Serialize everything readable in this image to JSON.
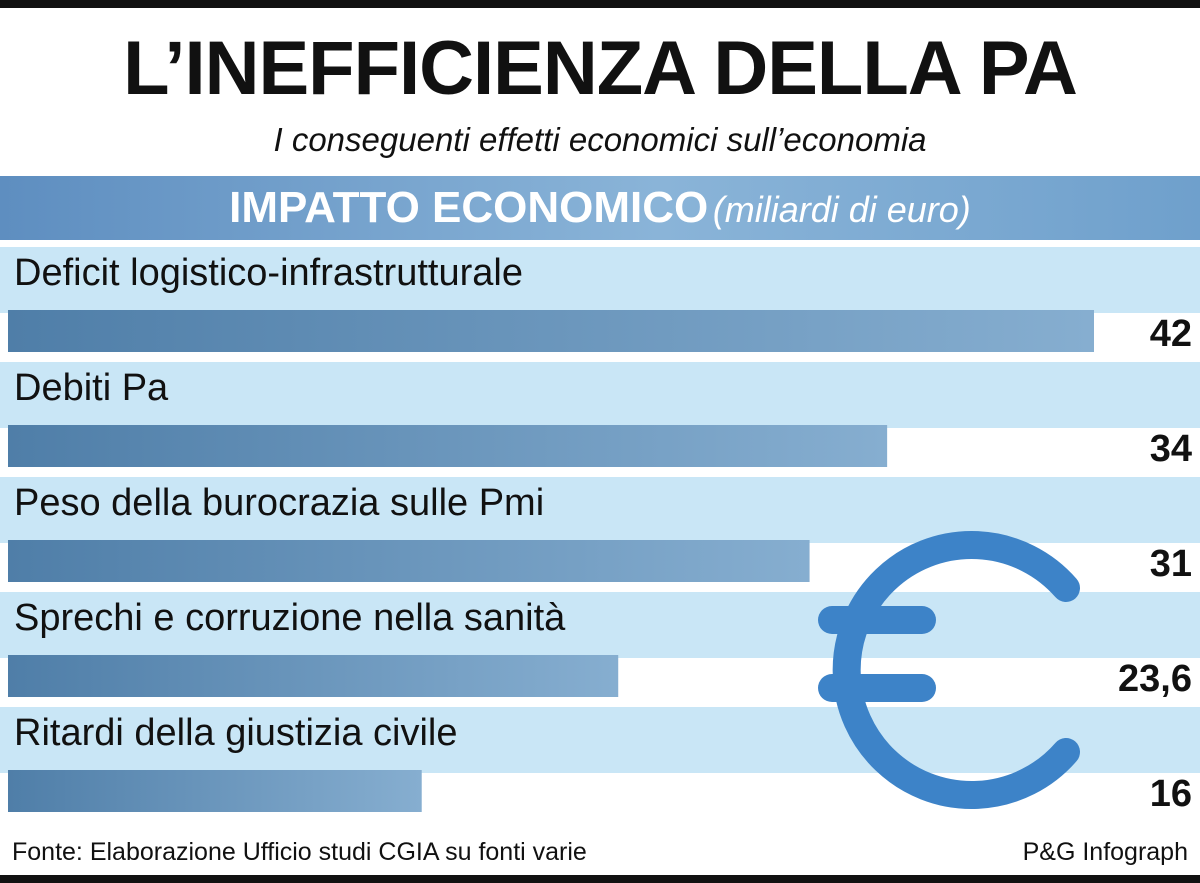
{
  "header": {
    "title": "L’INEFFICIENZA DELLA PA",
    "subtitle": "I conseguenti effetti economici sull’economia",
    "section_title": "IMPATTO ECONOMICO",
    "section_unit": "(miliardi di euro)"
  },
  "footer": {
    "source": "Fonte: Elaborazione Ufficio studi CGIA su fonti varie",
    "credit": "P&G Infograph"
  },
  "decoration": {
    "icon": "euro-icon",
    "icon_color": "#3d83c8"
  },
  "colors": {
    "band": "#c9e6f6",
    "bar_dark": "#4f7ea8",
    "bar_light": "#86aed0",
    "header": "#6a9ccb"
  },
  "chart_data": {
    "type": "bar",
    "orientation": "horizontal",
    "categories": [
      "Deficit logistico-infrastrutturale",
      "Debiti Pa",
      "Peso della burocrazia sulle Pmi",
      "Sprechi e corruzione nella sanità",
      "Ritardi della giustizia civile"
    ],
    "values": [
      42,
      34,
      31,
      23.6,
      16
    ],
    "value_labels": [
      "42",
      "34",
      "31",
      "23,6",
      "16"
    ],
    "title": "IMPATTO ECONOMICO",
    "unit": "(miliardi di euro)",
    "xlabel": "",
    "ylabel": "",
    "xlim": [
      0,
      42
    ],
    "grid": false,
    "legend": "none"
  }
}
